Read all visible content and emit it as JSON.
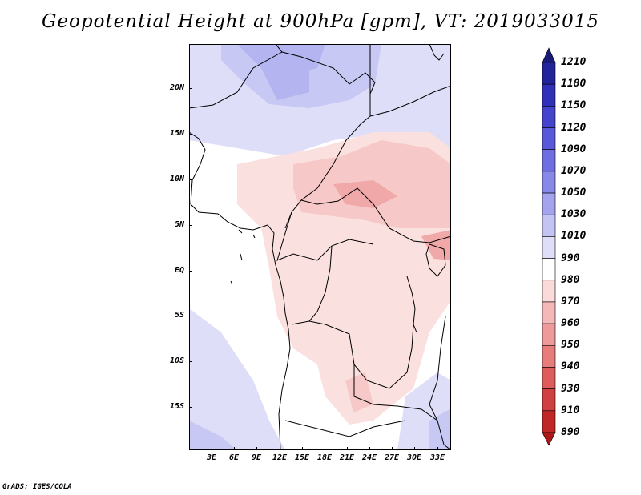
{
  "title": "Geopotential Height at 900hPa [gpm], VT: 2019033015",
  "credit": "GrADS: IGES/COLA",
  "y_axis_labels": [
    "20N",
    "15N",
    "10N",
    "5N",
    "EQ",
    "5S",
    "10S",
    "15S"
  ],
  "x_axis_labels": [
    "3E",
    "6E",
    "9E",
    "12E",
    "15E",
    "18E",
    "21E",
    "24E",
    "27E",
    "30E",
    "33E"
  ],
  "colorbar": {
    "levels": [
      "1210",
      "1180",
      "1150",
      "1120",
      "1090",
      "1070",
      "1050",
      "1030",
      "1010",
      "990",
      "980",
      "970",
      "960",
      "950",
      "940",
      "930",
      "910",
      "890"
    ],
    "colors": [
      "#1a1a7a",
      "#23239a",
      "#3030b8",
      "#4444cc",
      "#5858d8",
      "#6e6ee0",
      "#8888e8",
      "#a4a4ee",
      "#c4c4f4",
      "#dedef8",
      "#ffffff",
      "#fadada",
      "#f4b8b8",
      "#ee9a9a",
      "#e67c7c",
      "#de5c5c",
      "#d04040",
      "#c02828",
      "#aa1818"
    ]
  },
  "map": {
    "field_colors": {
      "high_deep": "#b4b4f0",
      "high_mid": "#c8c8f4",
      "high_light": "#dedef8",
      "low_light": "#fbe0e0",
      "low_mid": "#f7c8c8",
      "low_strong": "#f1a8a8"
    },
    "coastline_color": "#000000"
  }
}
